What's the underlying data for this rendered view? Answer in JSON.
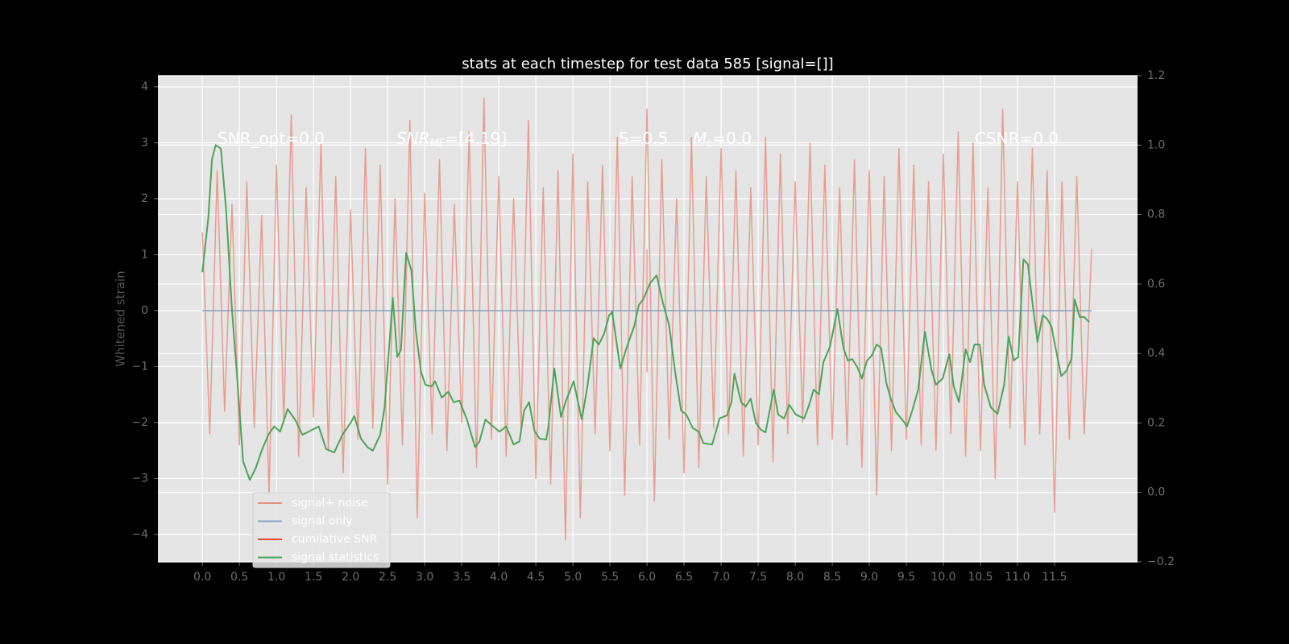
{
  "chart_data": {
    "type": "line",
    "title": "stats at each timestep for test data 585 [signal=[]]",
    "ylabel": "Whitened strain",
    "xlim": [
      -0.6,
      12.62
    ],
    "ylim": [
      -4.49,
      4.2
    ],
    "y2lim": [
      -0.2,
      1.2
    ],
    "xticks": [
      {
        "value": 0,
        "label": "0.0"
      },
      {
        "value": 0.5,
        "label": "0.5"
      },
      {
        "value": 1,
        "label": "1.0"
      },
      {
        "value": 1.5,
        "label": "1.5"
      },
      {
        "value": 2,
        "label": "2.0"
      },
      {
        "value": 2.5,
        "label": "2.5"
      },
      {
        "value": 3,
        "label": "3.0"
      },
      {
        "value": 3.5,
        "label": "3.5"
      },
      {
        "value": 4,
        "label": "4.0"
      },
      {
        "value": 4.5,
        "label": "4.5"
      },
      {
        "value": 5,
        "label": "5.0"
      },
      {
        "value": 5.5,
        "label": "5.5"
      },
      {
        "value": 6,
        "label": "6.0"
      },
      {
        "value": 6.5,
        "label": "6.5"
      },
      {
        "value": 7,
        "label": "7.0"
      },
      {
        "value": 7.5,
        "label": "7.5"
      },
      {
        "value": 8,
        "label": "8.0"
      },
      {
        "value": 8.5,
        "label": "8.5"
      },
      {
        "value": 9,
        "label": "9.0"
      },
      {
        "value": 9.5,
        "label": "9.5"
      },
      {
        "value": 10,
        "label": "10.0"
      },
      {
        "value": 10.5,
        "label": "10.5"
      },
      {
        "value": 11,
        "label": "11.0"
      },
      {
        "value": 11.5,
        "label": "11.5"
      }
    ],
    "yticks": [
      {
        "value": -4,
        "label": "−4"
      },
      {
        "value": -3,
        "label": "−3"
      },
      {
        "value": -2,
        "label": "−2"
      },
      {
        "value": -1,
        "label": "−1"
      },
      0,
      1,
      2,
      3,
      4
    ],
    "y2ticks": [
      {
        "value": -0.2,
        "label": "−0.2"
      },
      {
        "value": 0,
        "label": "0.0"
      },
      0.2,
      0.4,
      0.6,
      0.8,
      {
        "value": 1,
        "label": "1.0"
      },
      1.2
    ],
    "grid": true,
    "legend": "lower left",
    "annotations": [
      {
        "text": "SNR_opt=0.0"
      },
      {
        "text": "SNR",
        "sub": "MF",
        "tail": "=[4.19]",
        "italic": true
      },
      {
        "text": "S=0.5"
      },
      {
        "text": "M",
        "sub": "c",
        "tail": "=0.0",
        "italic": true
      },
      {
        "text": "CSNR=0.0"
      }
    ],
    "series": [
      {
        "name": "signal+ noise",
        "color": "#e8907e",
        "axis": "y",
        "x": [
          0,
          0.1,
          0.2,
          0.3,
          0.4,
          0.5,
          0.6,
          0.7,
          0.8,
          0.9,
          1,
          1.1,
          1.2,
          1.3,
          1.4,
          1.5,
          1.6,
          1.7,
          1.8,
          1.9,
          2,
          2.1,
          2.2,
          2.3,
          2.4,
          2.5,
          2.6,
          2.7,
          2.8,
          2.9,
          3,
          3.1,
          3.2,
          3.3,
          3.4,
          3.5,
          3.6,
          3.7,
          3.8,
          3.9,
          4,
          4.1,
          4.2,
          4.3,
          4.4,
          4.5,
          4.6,
          4.7,
          4.8,
          4.9,
          5,
          5.1,
          5.2,
          5.3,
          5.4,
          5.5,
          5.6,
          5.7,
          5.8,
          5.9,
          6,
          6.1,
          6.2,
          6.3,
          6.4,
          6.5,
          6.6,
          6.7,
          6.8,
          6.9,
          7,
          7.1,
          7.2,
          7.3,
          7.4,
          7.5,
          7.6,
          7.7,
          7.8,
          7.9,
          8,
          8.1,
          8.2,
          8.3,
          8.4,
          8.5,
          8.6,
          8.7,
          8.8,
          8.9,
          9,
          9.1,
          9.2,
          9.3,
          9.4,
          9.5,
          9.6,
          9.7,
          9.8,
          9.9,
          10,
          10.1,
          10.2,
          10.3,
          10.4,
          10.5,
          10.6,
          10.7,
          10.8,
          10.9,
          11,
          11.1,
          11.2,
          11.3,
          11.4,
          11.5,
          11.6,
          11.7,
          11.8,
          11.9,
          12
        ],
        "values": [
          1.4,
          -2.2,
          2.5,
          -1.8,
          1.9,
          -2.4,
          2.3,
          -2.1,
          1.7,
          -3.3,
          2.6,
          -2.0,
          3.5,
          -2.6,
          2.2,
          -1.9,
          3.0,
          -2.5,
          2.4,
          -2.9,
          1.8,
          -2.3,
          2.9,
          -2.1,
          2.6,
          -3.1,
          2.0,
          -2.4,
          3.4,
          -3.7,
          2.1,
          -2.2,
          2.7,
          -2.5,
          1.9,
          -2.0,
          3.2,
          -2.8,
          3.8,
          -2.3,
          2.4,
          -2.6,
          2.0,
          -2.1,
          3.4,
          -3.0,
          2.2,
          -3.1,
          2.5,
          -4.1,
          2.8,
          -3.7,
          2.3,
          -2.2,
          2.6,
          -2.5,
          3.1,
          -3.3,
          2.4,
          -2.4,
          3.6,
          -3.4,
          2.7,
          -2.3,
          2.0,
          -2.9,
          3.1,
          -2.8,
          2.4,
          -2.1,
          2.9,
          -2.2,
          2.5,
          -2.6,
          2.2,
          -2.4,
          3.1,
          -2.7,
          2.8,
          -2.2,
          2.3,
          -2.0,
          3.0,
          -2.4,
          2.6,
          -2.3,
          2.2,
          -2.4,
          2.7,
          -2.8,
          2.5,
          -3.3,
          2.4,
          -2.5,
          2.9,
          -2.3,
          2.6,
          -2.4,
          2.3,
          -2.5,
          2.8,
          -2.2,
          3.2,
          -2.6,
          3.0,
          -2.5,
          2.2,
          -3.0,
          3.6,
          -2.1,
          2.3,
          -2.4,
          2.9,
          -2.2,
          2.5,
          -3.6,
          2.3,
          -2.3,
          2.4,
          -2.2,
          1.1
        ]
      },
      {
        "name": "signal only",
        "color": "#8ea4c2",
        "axis": "y",
        "x": [
          0,
          12
        ],
        "values": [
          0,
          0
        ]
      },
      {
        "name": "cumilative SNR",
        "color": "#e24a33",
        "axis": "y",
        "x": [
          6,
          6
        ],
        "values": [
          1.1,
          -1.1
        ]
      },
      {
        "name": "signal statistics",
        "color": "#4fa35a",
        "axis": "y2",
        "x": [
          0,
          0.08,
          0.13,
          0.18,
          0.25,
          0.32,
          0.4,
          0.47,
          0.55,
          0.64,
          0.72,
          0.8,
          0.89,
          0.97,
          1.05,
          1.15,
          1.25,
          1.35,
          1.46,
          1.57,
          1.67,
          1.78,
          1.89,
          2.0,
          2.05,
          2.14,
          2.23,
          2.3,
          2.4,
          2.46,
          2.57,
          2.63,
          2.68,
          2.75,
          2.82,
          2.88,
          2.95,
          3.01,
          3.09,
          3.14,
          3.23,
          3.32,
          3.39,
          3.47,
          3.57,
          3.68,
          3.74,
          3.82,
          3.9,
          4.01,
          4.1,
          4.2,
          4.28,
          4.34,
          4.41,
          4.48,
          4.55,
          4.64,
          4.67,
          4.75,
          4.84,
          4.9,
          5.01,
          5.12,
          5.2,
          5.28,
          5.35,
          5.42,
          5.49,
          5.53,
          5.64,
          5.73,
          5.83,
          5.89,
          5.95,
          6.04,
          6.13,
          6.21,
          6.3,
          6.38,
          6.46,
          6.53,
          6.62,
          6.7,
          6.76,
          6.88,
          6.98,
          7.08,
          7.14,
          7.18,
          7.27,
          7.33,
          7.4,
          7.47,
          7.54,
          7.6,
          7.71,
          7.77,
          7.85,
          7.92,
          8.01,
          8.12,
          8.18,
          8.25,
          8.32,
          8.38,
          8.47,
          8.57,
          8.65,
          8.71,
          8.77,
          8.84,
          8.9,
          8.97,
          9.03,
          9.1,
          9.16,
          9.23,
          9.29,
          9.36,
          9.45,
          9.51,
          9.58,
          9.66,
          9.75,
          9.84,
          9.9,
          9.99,
          10.08,
          10.14,
          10.21,
          10.3,
          10.36,
          10.42,
          10.49,
          10.55,
          10.64,
          10.73,
          10.82,
          10.88,
          10.95,
          11.01,
          11.08,
          11.14,
          11.21,
          11.27,
          11.34,
          11.4,
          11.46,
          11.51,
          11.59,
          11.66,
          11.73,
          11.77,
          11.84,
          11.9,
          11.97
        ],
        "values": [
          0.634,
          0.79,
          0.96,
          1.0,
          0.99,
          0.815,
          0.525,
          0.33,
          0.09,
          0.036,
          0.07,
          0.12,
          0.166,
          0.19,
          0.175,
          0.24,
          0.21,
          0.166,
          0.178,
          0.19,
          0.125,
          0.115,
          0.166,
          0.2,
          0.22,
          0.155,
          0.13,
          0.12,
          0.166,
          0.247,
          0.56,
          0.39,
          0.41,
          0.69,
          0.64,
          0.467,
          0.347,
          0.31,
          0.305,
          0.32,
          0.273,
          0.29,
          0.26,
          0.264,
          0.21,
          0.13,
          0.147,
          0.21,
          0.194,
          0.175,
          0.19,
          0.138,
          0.147,
          0.235,
          0.26,
          0.178,
          0.155,
          0.152,
          0.19,
          0.357,
          0.217,
          0.26,
          0.32,
          0.21,
          0.31,
          0.444,
          0.426,
          0.456,
          0.51,
          0.52,
          0.357,
          0.42,
          0.48,
          0.54,
          0.556,
          0.602,
          0.625,
          0.55,
          0.48,
          0.347,
          0.236,
          0.224,
          0.185,
          0.175,
          0.142,
          0.138,
          0.213,
          0.222,
          0.26,
          0.342,
          0.26,
          0.247,
          0.27,
          0.2,
          0.18,
          0.173,
          0.296,
          0.224,
          0.213,
          0.252,
          0.224,
          0.213,
          0.247,
          0.296,
          0.282,
          0.375,
          0.42,
          0.528,
          0.417,
          0.38,
          0.384,
          0.36,
          0.328,
          0.38,
          0.393,
          0.426,
          0.416,
          0.315,
          0.27,
          0.231,
          0.208,
          0.19,
          0.236,
          0.296,
          0.463,
          0.352,
          0.31,
          0.328,
          0.398,
          0.305,
          0.26,
          0.412,
          0.375,
          0.426,
          0.426,
          0.31,
          0.245,
          0.226,
          0.31,
          0.449,
          0.38,
          0.39,
          0.671,
          0.657,
          0.532,
          0.433,
          0.51,
          0.5,
          0.477,
          0.42,
          0.335,
          0.35,
          0.386,
          0.556,
          0.505,
          0.505,
          0.49
        ]
      }
    ]
  }
}
